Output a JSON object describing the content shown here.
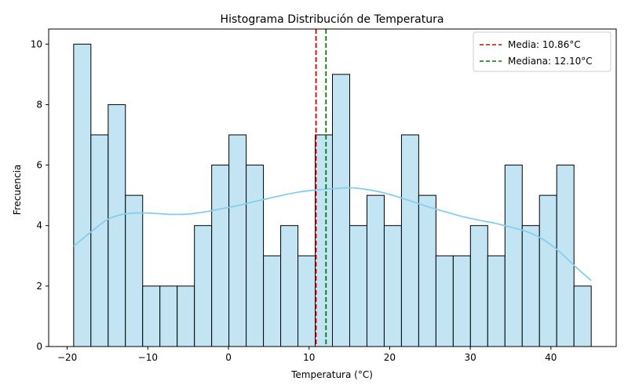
{
  "chart_data": {
    "type": "bar",
    "subtype": "histogram",
    "title": "Histograma Distribución de Temperatura",
    "xlabel": "Temperatura (°C)",
    "ylabel": "Frecuencia",
    "xlim": [
      -22.3,
      48.1
    ],
    "ylim": [
      0,
      10.5
    ],
    "xticks": [
      -20,
      -10,
      0,
      10,
      20,
      30,
      40
    ],
    "xtick_labels": [
      "−20",
      "−10",
      "0",
      "10",
      "20",
      "30",
      "40"
    ],
    "yticks": [
      0,
      2,
      4,
      6,
      8,
      10
    ],
    "ytick_labels": [
      "0",
      "2",
      "4",
      "6",
      "8",
      "10"
    ],
    "bin_start": -19.2,
    "bin_width": 2.14,
    "counts": [
      10,
      7,
      8,
      5,
      2,
      2,
      2,
      4,
      6,
      7,
      6,
      3,
      4,
      3,
      7,
      9,
      4,
      5,
      4,
      7,
      5,
      3,
      3,
      4,
      3,
      6,
      4,
      5,
      6,
      2
    ],
    "bar_fill": "#c3e4f2",
    "bar_edge": "#000000",
    "kde": {
      "color": "#87ceeb",
      "x": [
        -19.2,
        -17,
        -15,
        -13,
        -11,
        -9,
        -7,
        -5,
        -3,
        -1,
        1,
        3,
        5,
        7,
        9,
        11,
        13,
        15,
        17,
        19,
        21,
        23,
        25,
        27,
        29,
        31,
        33,
        35,
        37,
        39,
        41,
        43,
        45
      ],
      "y": [
        3.32,
        3.8,
        4.2,
        4.38,
        4.42,
        4.4,
        4.37,
        4.38,
        4.45,
        4.55,
        4.65,
        4.78,
        4.9,
        5.02,
        5.12,
        5.18,
        5.22,
        5.25,
        5.2,
        5.1,
        4.95,
        4.78,
        4.6,
        4.45,
        4.3,
        4.18,
        4.08,
        3.95,
        3.8,
        3.55,
        3.15,
        2.65,
        2.18
      ]
    },
    "vlines": [
      {
        "label": "Media: 10.86°C",
        "x": 10.86,
        "color": "#e00000",
        "style": "dashed"
      },
      {
        "label": "Mediana: 12.10°C",
        "x": 12.1,
        "color": "#008000",
        "style": "dashed"
      }
    ],
    "legend_position": "top-right",
    "grid": false
  }
}
